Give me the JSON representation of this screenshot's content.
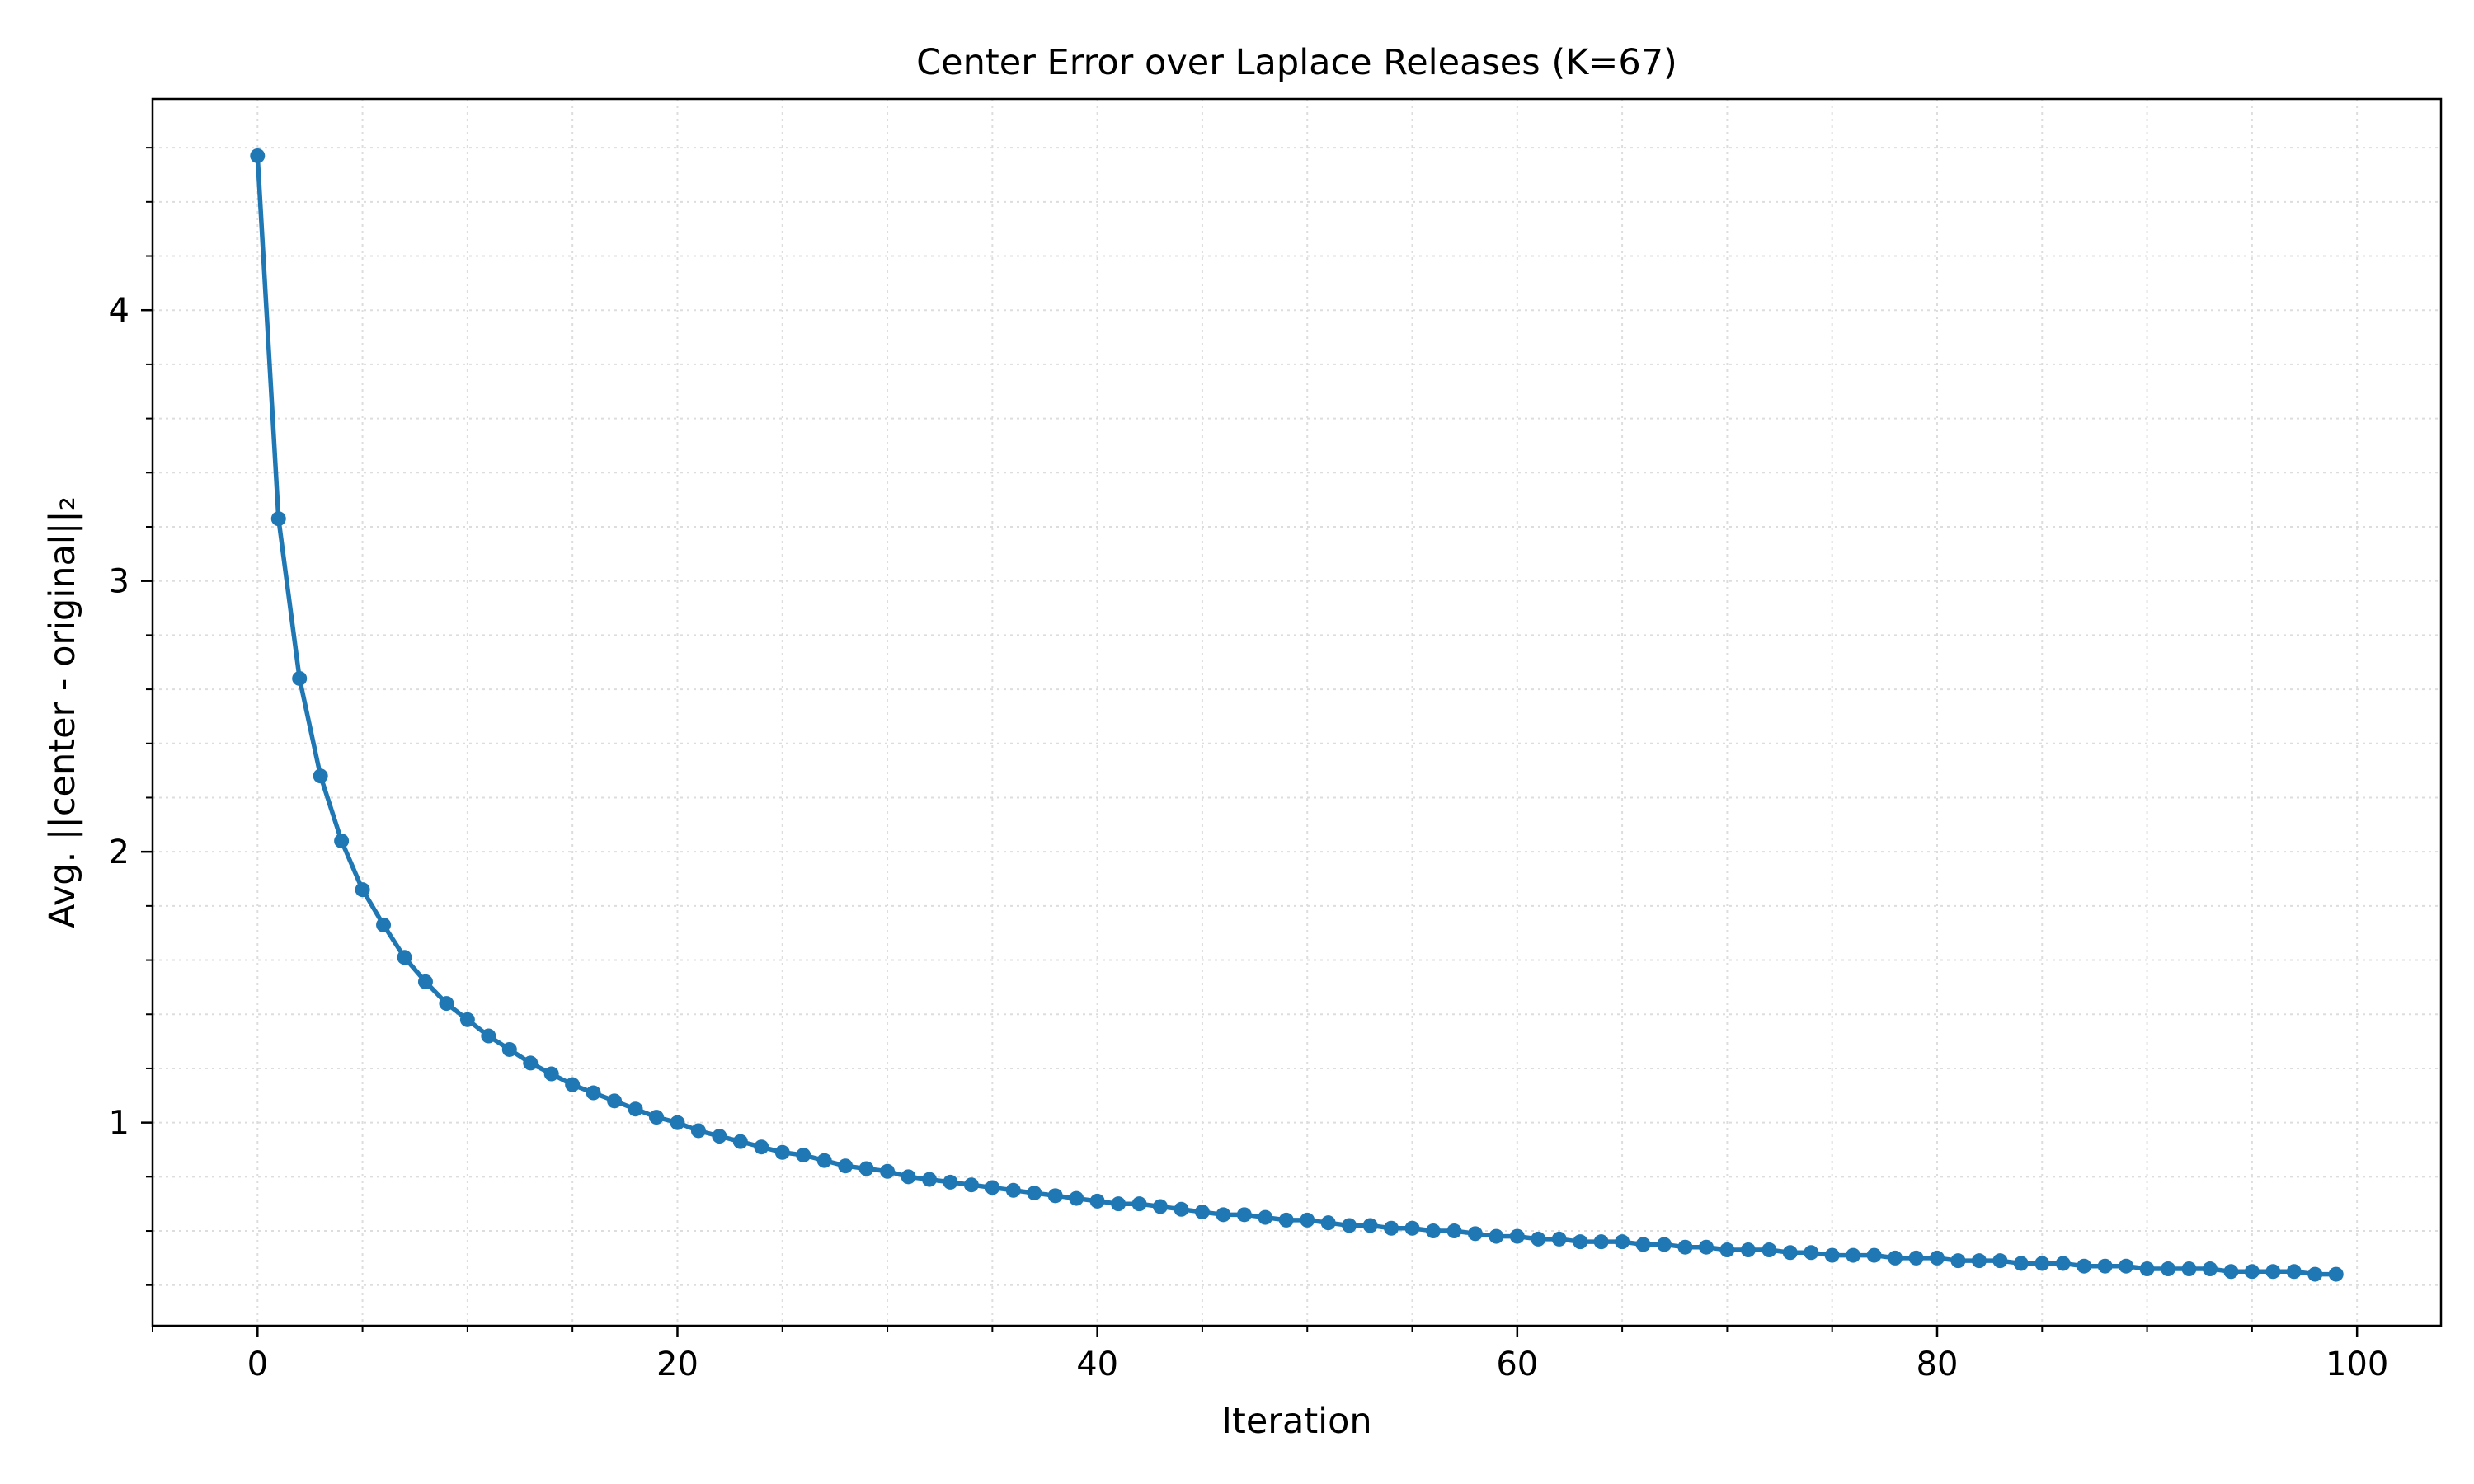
{
  "chart_data": {
    "type": "line",
    "title": "Center Error over Laplace Releases (K=67)",
    "xlabel": "Iteration",
    "ylabel": "Avg. ||center - original||₂",
    "xlim": [
      -5,
      104
    ],
    "ylim": [
      0.25,
      4.78
    ],
    "xticks": [
      0,
      20,
      40,
      60,
      80,
      100
    ],
    "yticks": [
      1,
      2,
      3,
      4
    ],
    "x_minor_step": 5,
    "y_minor_step": 0.2,
    "grid": true,
    "grid_style": "dotted",
    "legend": "none",
    "colors": {
      "line": "#1f77b4",
      "grid": "#dddddd",
      "axis": "#000000"
    },
    "x": [
      0,
      1,
      2,
      3,
      4,
      5,
      6,
      7,
      8,
      9,
      10,
      11,
      12,
      13,
      14,
      15,
      16,
      17,
      18,
      19,
      20,
      21,
      22,
      23,
      24,
      25,
      26,
      27,
      28,
      29,
      30,
      31,
      32,
      33,
      34,
      35,
      36,
      37,
      38,
      39,
      40,
      41,
      42,
      43,
      44,
      45,
      46,
      47,
      48,
      49,
      50,
      51,
      52,
      53,
      54,
      55,
      56,
      57,
      58,
      59,
      60,
      61,
      62,
      63,
      64,
      65,
      66,
      67,
      68,
      69,
      70,
      71,
      72,
      73,
      74,
      75,
      76,
      77,
      78,
      79,
      80,
      81,
      82,
      83,
      84,
      85,
      86,
      87,
      88,
      89,
      90,
      91,
      92,
      93,
      94,
      95,
      96,
      97,
      98,
      99
    ],
    "series": [
      {
        "values": [
          4.57,
          3.23,
          2.64,
          2.28,
          2.04,
          1.86,
          1.73,
          1.61,
          1.52,
          1.44,
          1.38,
          1.32,
          1.27,
          1.22,
          1.18,
          1.14,
          1.11,
          1.08,
          1.05,
          1.02,
          1.0,
          0.97,
          0.95,
          0.93,
          0.91,
          0.89,
          0.88,
          0.86,
          0.84,
          0.83,
          0.82,
          0.8,
          0.79,
          0.78,
          0.77,
          0.76,
          0.75,
          0.74,
          0.73,
          0.72,
          0.71,
          0.7,
          0.7,
          0.69,
          0.68,
          0.67,
          0.66,
          0.66,
          0.65,
          0.64,
          0.64,
          0.63,
          0.62,
          0.62,
          0.61,
          0.61,
          0.6,
          0.6,
          0.59,
          0.58,
          0.58,
          0.57,
          0.57,
          0.56,
          0.56,
          0.56,
          0.55,
          0.55,
          0.54,
          0.54,
          0.53,
          0.53,
          0.53,
          0.52,
          0.52,
          0.51,
          0.51,
          0.51,
          0.5,
          0.5,
          0.5,
          0.49,
          0.49,
          0.49,
          0.48,
          0.48,
          0.48,
          0.47,
          0.47,
          0.47,
          0.46,
          0.46,
          0.46,
          0.46,
          0.45,
          0.45,
          0.45,
          0.45,
          0.44,
          0.44
        ]
      }
    ]
  }
}
